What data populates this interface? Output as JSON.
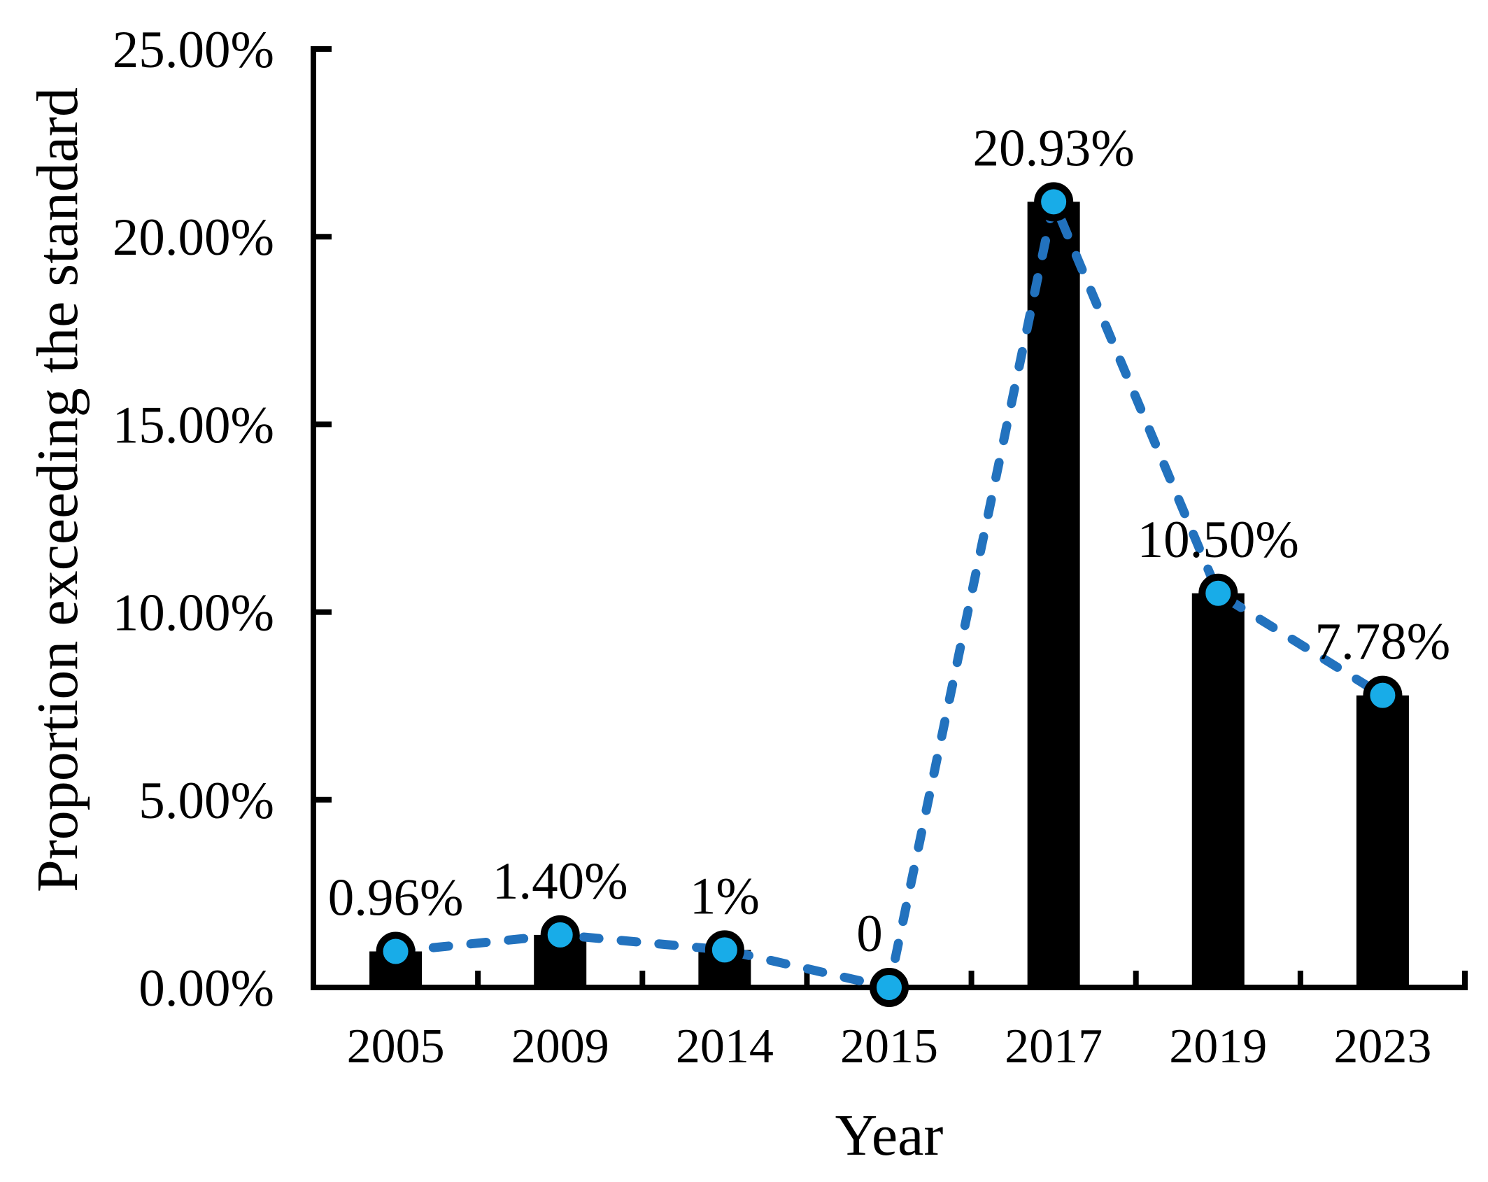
{
  "chart_data": {
    "type": "bar",
    "title": "",
    "categories": [
      "2005",
      "2009",
      "2014",
      "2015",
      "2017",
      "2019",
      "2023"
    ],
    "series": [
      {
        "name": "proportion-bars",
        "type": "bar",
        "values": [
          0.96,
          1.4,
          1.0,
          0,
          20.93,
          10.5,
          7.78
        ]
      },
      {
        "name": "proportion-trend",
        "type": "line",
        "style": "dashed",
        "values": [
          0.96,
          1.4,
          1.0,
          0,
          20.93,
          10.5,
          7.78
        ]
      }
    ],
    "data_labels": [
      "0.96%",
      "1.40%",
      "1%",
      "0",
      "20.93%",
      "10.50%",
      "7.78%"
    ],
    "xlabel": "Year",
    "ylabel": "Proportion exceeding the standard",
    "ylim": [
      0,
      25
    ],
    "ytick_values": [
      0,
      5,
      10,
      15,
      20,
      25
    ],
    "ytick_labels": [
      "0.00%",
      "5.00%",
      "10.00%",
      "15.00%",
      "20.00%",
      "25.00%"
    ],
    "grid": false,
    "legend": "none"
  },
  "colors": {
    "background": "#ffffff",
    "bar": "#000000",
    "axis": "#000000",
    "text": "#000000",
    "trend_line": "#2272BE",
    "marker_fill": "#18ACE8",
    "marker_stroke": "#000000"
  }
}
